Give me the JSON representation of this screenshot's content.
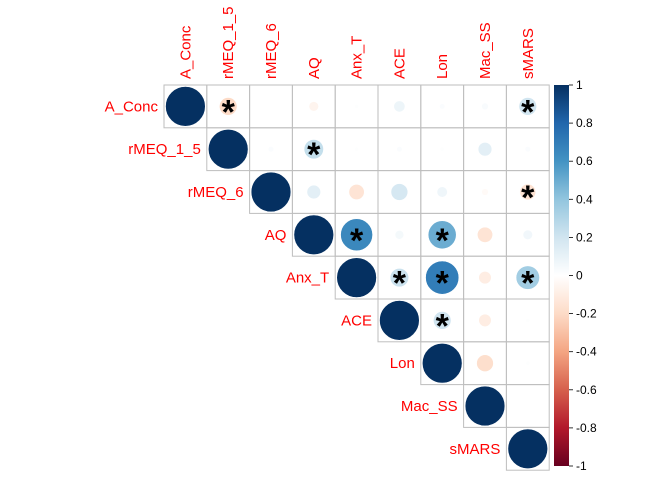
{
  "chart_data": {
    "type": "correlation-matrix",
    "layout": "upper-triangle",
    "variables": [
      "A_Conc",
      "rMEQ_1_5",
      "rMEQ_6",
      "AQ",
      "Anx_T",
      "ACE",
      "Lon",
      "Mac_SS",
      "sMARS"
    ],
    "matrix": [
      [
        1.0,
        -0.2,
        0.0,
        -0.06,
        0.01,
        0.08,
        0.02,
        0.03,
        0.2
      ],
      [
        null,
        1.0,
        0.02,
        0.24,
        0.01,
        0.02,
        0.01,
        0.12,
        0.02
      ],
      [
        null,
        null,
        1.0,
        0.12,
        -0.15,
        0.18,
        0.07,
        -0.03,
        -0.16
      ],
      [
        null,
        null,
        null,
        1.0,
        0.65,
        0.05,
        0.5,
        -0.15,
        0.06
      ],
      [
        null,
        null,
        null,
        null,
        1.0,
        0.22,
        0.7,
        -0.1,
        0.35
      ],
      [
        null,
        null,
        null,
        null,
        null,
        1.0,
        0.2,
        -0.1,
        0.01
      ],
      [
        null,
        null,
        null,
        null,
        null,
        null,
        1.0,
        -0.18,
        0.01
      ],
      [
        null,
        null,
        null,
        null,
        null,
        null,
        null,
        1.0,
        0.0
      ],
      [
        null,
        null,
        null,
        null,
        null,
        null,
        null,
        null,
        1.0
      ]
    ],
    "significant": [
      [
        0,
        1
      ],
      [
        0,
        8
      ],
      [
        1,
        3
      ],
      [
        2,
        8
      ],
      [
        3,
        4
      ],
      [
        3,
        6
      ],
      [
        4,
        5
      ],
      [
        4,
        6
      ],
      [
        4,
        8
      ],
      [
        5,
        6
      ]
    ],
    "significance_marker": "*",
    "colorbar": {
      "range": [
        -1,
        1
      ],
      "ticks": [
        "-1",
        "-0.8",
        "-0.6",
        "-0.4",
        "-0.2",
        "0",
        "0.2",
        "0.4",
        "0.6",
        "0.8",
        "1"
      ],
      "tick_values": [
        -1,
        -0.8,
        -0.6,
        -0.4,
        -0.2,
        0,
        0.2,
        0.4,
        0.6,
        0.8,
        1
      ]
    },
    "colors": {
      "stops": [
        "#67001F",
        "#B2182B",
        "#D6604D",
        "#F4A582",
        "#FDDBC7",
        "#FFFFFF",
        "#D1E5F0",
        "#92C5DE",
        "#4393C3",
        "#2166AC",
        "#053061"
      ],
      "label": "#FF0000",
      "grid": "#BEBEBE"
    }
  }
}
